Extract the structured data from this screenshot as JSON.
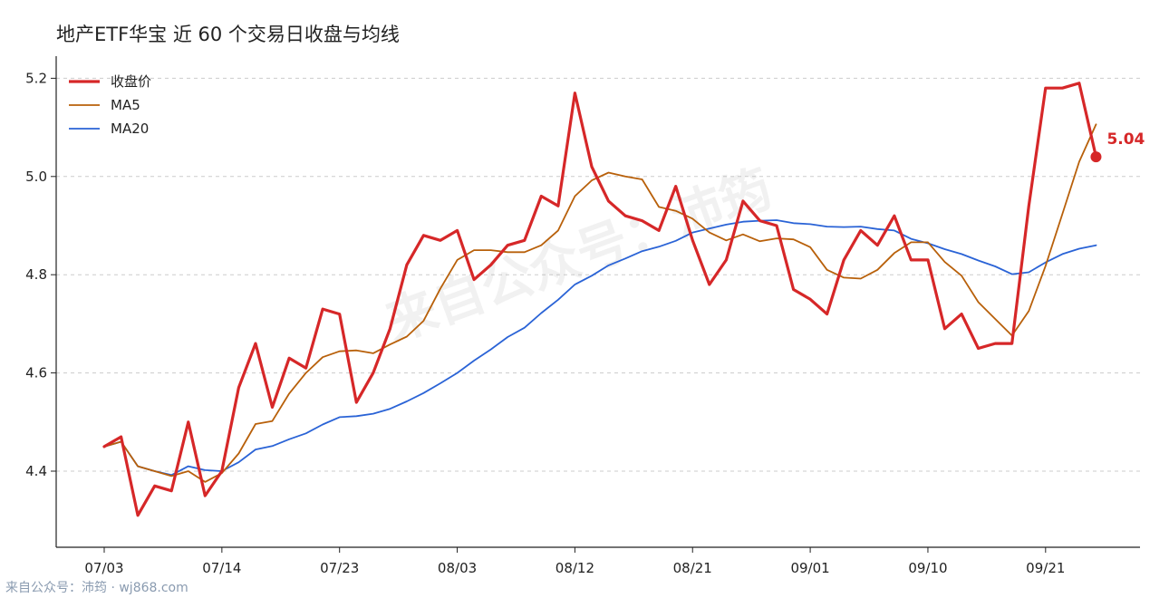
{
  "chart_data": {
    "type": "line",
    "title": "地产ETF华宝 近 60 个交易日收盘与均线",
    "xlabel": "",
    "ylabel": "",
    "ylim": [
      4.245,
      5.245
    ],
    "yticks": [
      "4.4",
      "4.6",
      "4.8",
      "5.0",
      "5.2"
    ],
    "xtick_labels": [
      "07/03",
      "07/14",
      "07/23",
      "08/03",
      "08/12",
      "08/21",
      "09/01",
      "09/10",
      "09/21"
    ],
    "xtick_indices": [
      0,
      7,
      14,
      21,
      28,
      35,
      42,
      49,
      56
    ],
    "grid": "horizontal dashed",
    "legend_position": "top-left",
    "series": [
      {
        "name": "收盘价",
        "color": "#d62728",
        "values": [
          4.45,
          4.47,
          4.31,
          4.37,
          4.36,
          4.5,
          4.35,
          4.4,
          4.57,
          4.66,
          4.53,
          4.63,
          4.61,
          4.73,
          4.72,
          4.54,
          4.6,
          4.69,
          4.82,
          4.88,
          4.87,
          4.89,
          4.79,
          4.82,
          4.86,
          4.87,
          4.96,
          4.94,
          5.17,
          5.02,
          4.95,
          4.92,
          4.91,
          4.89,
          4.98,
          4.87,
          4.78,
          4.83,
          4.95,
          4.91,
          4.9,
          4.77,
          4.75,
          4.72,
          4.83,
          4.89,
          4.86,
          4.92,
          4.83,
          4.83,
          4.69,
          4.72,
          4.65,
          4.66,
          4.66,
          4.94,
          5.18,
          5.18,
          5.19,
          5.04
        ]
      },
      {
        "name": "MA5",
        "color": "#b8600a",
        "values": [
          4.45,
          4.46,
          4.41,
          4.4,
          4.39,
          4.4,
          4.378,
          4.396,
          4.436,
          4.496,
          4.502,
          4.558,
          4.6,
          4.632,
          4.644,
          4.646,
          4.64,
          4.658,
          4.674,
          4.706,
          4.772,
          4.83,
          4.85,
          4.85,
          4.846,
          4.846,
          4.86,
          4.89,
          4.96,
          4.992,
          5.008,
          5.0,
          4.994,
          4.938,
          4.93,
          4.914,
          4.886,
          4.87,
          4.882,
          4.868,
          4.874,
          4.872,
          4.856,
          4.81,
          4.794,
          4.792,
          4.81,
          4.844,
          4.866,
          4.866,
          4.826,
          4.798,
          4.744,
          4.71,
          4.676,
          4.726,
          4.818,
          4.924,
          5.03,
          5.106
        ]
      },
      {
        "name": "MA20",
        "color": "#2a63d6",
        "values": [
          4.45,
          4.46,
          4.41,
          4.4,
          4.392,
          4.41,
          4.402,
          4.4,
          4.418,
          4.444,
          4.451,
          4.465,
          4.477,
          4.495,
          4.51,
          4.512,
          4.517,
          4.527,
          4.542,
          4.559,
          4.579,
          4.6,
          4.625,
          4.648,
          4.673,
          4.692,
          4.722,
          4.749,
          4.78,
          4.798,
          4.819,
          4.833,
          4.848,
          4.857,
          4.869,
          4.886,
          4.894,
          4.902,
          4.908,
          4.91,
          4.911,
          4.905,
          4.903,
          4.898,
          4.897,
          4.898,
          4.893,
          4.89,
          4.873,
          4.864,
          4.852,
          4.842,
          4.829,
          4.817,
          4.801,
          4.805,
          4.825,
          4.842,
          4.853,
          4.86
        ]
      }
    ],
    "last_value_label": "5.04"
  },
  "watermark": "来自公众号：沛筠",
  "footer_credit": "来自公众号：沛筠 · wj868.com"
}
